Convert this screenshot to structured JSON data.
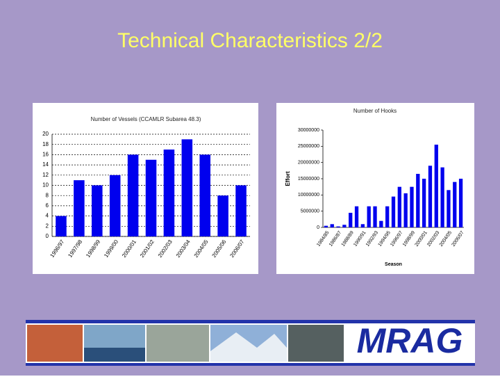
{
  "title": "Technical Characteristics 2/2",
  "logo": "MRAG",
  "chart_data": [
    {
      "type": "bar",
      "title": "Number of Vessels (CCAMLR Subarea 48.3)",
      "categories": [
        "1996/97",
        "1997/98",
        "1998/99",
        "1999/00",
        "2000/01",
        "2001/02",
        "2002/03",
        "2003/04",
        "2004/05",
        "2005/06",
        "2006/07"
      ],
      "values": [
        4,
        11,
        10,
        12,
        16,
        15,
        17,
        19,
        16,
        8,
        10
      ],
      "color": "#0000ee",
      "ylim": [
        0,
        20
      ],
      "yticks": [
        0,
        2,
        4,
        6,
        8,
        10,
        12,
        14,
        16,
        18,
        20
      ],
      "grid": true
    },
    {
      "type": "bar",
      "title": "Number of Hooks",
      "y_label": "Effort",
      "x_label": "Season",
      "categories": [
        "1984/85",
        null,
        "1986/87",
        null,
        "1988/89",
        null,
        "1990/91",
        null,
        "1992/93",
        null,
        "1994/95",
        null,
        "1996/97",
        null,
        "1998/99",
        null,
        "2000/01",
        null,
        "2002/03",
        null,
        "2004/05",
        null,
        "2006/07"
      ],
      "values": [
        500000,
        1000000,
        300000,
        800000,
        4500000,
        6500000,
        1000000,
        6500000,
        6500000,
        2000000,
        6500000,
        9500000,
        12500000,
        10500000,
        12500000,
        16500000,
        15000000,
        19000000,
        25500000,
        18500000,
        11500000,
        14000000,
        15000000
      ],
      "color": "#0000ee",
      "ylim": [
        0,
        30000000
      ],
      "yticks": [
        0,
        5000000,
        10000000,
        15000000,
        20000000,
        25000000,
        30000000
      ],
      "grid": false
    }
  ]
}
